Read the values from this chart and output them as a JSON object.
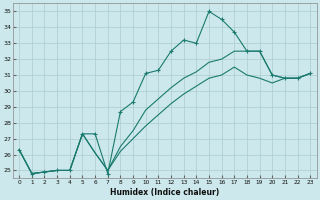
{
  "xlabel": "Humidex (Indice chaleur)",
  "bg_color": "#cce8ec",
  "grid_color": "#aacccc",
  "line_color": "#1a7a6e",
  "xlim": [
    -0.5,
    23.5
  ],
  "ylim": [
    24.5,
    35.5
  ],
  "yticks": [
    25,
    26,
    27,
    28,
    29,
    30,
    31,
    32,
    33,
    34,
    35
  ],
  "xticks": [
    0,
    1,
    2,
    3,
    4,
    5,
    6,
    7,
    8,
    9,
    10,
    11,
    12,
    13,
    14,
    15,
    16,
    17,
    18,
    19,
    20,
    21,
    22,
    23
  ],
  "series1": [
    [
      0,
      26.3
    ],
    [
      1,
      24.8
    ],
    [
      2,
      24.9
    ],
    [
      3,
      25.0
    ],
    [
      4,
      25.0
    ],
    [
      5,
      27.3
    ],
    [
      6,
      27.3
    ],
    [
      7,
      24.8
    ],
    [
      8,
      28.7
    ],
    [
      9,
      29.3
    ],
    [
      10,
      31.1
    ],
    [
      11,
      31.3
    ],
    [
      12,
      32.5
    ],
    [
      13,
      33.2
    ],
    [
      14,
      33.0
    ],
    [
      15,
      35.0
    ],
    [
      16,
      34.5
    ],
    [
      17,
      33.7
    ],
    [
      18,
      32.5
    ],
    [
      19,
      32.5
    ],
    [
      20,
      31.0
    ],
    [
      21,
      30.8
    ],
    [
      22,
      30.8
    ],
    [
      23,
      31.1
    ]
  ],
  "series2": [
    [
      0,
      26.3
    ],
    [
      1,
      24.8
    ],
    [
      2,
      24.9
    ],
    [
      3,
      25.0
    ],
    [
      4,
      25.0
    ],
    [
      5,
      27.3
    ],
    [
      6,
      26.1
    ],
    [
      7,
      25.0
    ],
    [
      8,
      26.5
    ],
    [
      9,
      27.5
    ],
    [
      10,
      28.8
    ],
    [
      11,
      29.5
    ],
    [
      12,
      30.2
    ],
    [
      13,
      30.8
    ],
    [
      14,
      31.2
    ],
    [
      15,
      31.8
    ],
    [
      16,
      32.0
    ],
    [
      17,
      32.5
    ],
    [
      18,
      32.5
    ],
    [
      19,
      32.5
    ],
    [
      20,
      31.0
    ],
    [
      21,
      30.8
    ],
    [
      22,
      30.8
    ],
    [
      23,
      31.1
    ]
  ],
  "series3": [
    [
      0,
      26.3
    ],
    [
      1,
      24.8
    ],
    [
      2,
      24.9
    ],
    [
      3,
      25.0
    ],
    [
      4,
      25.0
    ],
    [
      5,
      27.3
    ],
    [
      6,
      26.1
    ],
    [
      7,
      25.0
    ],
    [
      8,
      26.2
    ],
    [
      9,
      27.0
    ],
    [
      10,
      27.8
    ],
    [
      11,
      28.5
    ],
    [
      12,
      29.2
    ],
    [
      13,
      29.8
    ],
    [
      14,
      30.3
    ],
    [
      15,
      30.8
    ],
    [
      16,
      31.0
    ],
    [
      17,
      31.5
    ],
    [
      18,
      31.0
    ],
    [
      19,
      30.8
    ],
    [
      20,
      30.5
    ],
    [
      21,
      30.8
    ],
    [
      22,
      30.8
    ],
    [
      23,
      31.1
    ]
  ]
}
